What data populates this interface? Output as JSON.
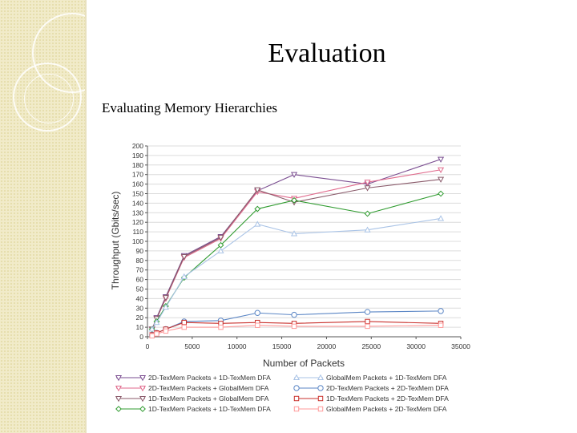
{
  "slide": {
    "title": "Evaluation",
    "subtitle": "Evaluating Memory Hierarchies"
  },
  "chart_data": {
    "type": "line",
    "title": "",
    "xlabel": "Number of Packets",
    "ylabel": "Throughput (Gbits/sec)",
    "xlim": [
      0,
      35000
    ],
    "ylim": [
      0,
      200
    ],
    "xticks": [
      0,
      5000,
      10000,
      15000,
      20000,
      25000,
      30000,
      35000
    ],
    "yticks": [
      0,
      10,
      20,
      30,
      40,
      50,
      60,
      70,
      80,
      90,
      100,
      110,
      120,
      130,
      140,
      150,
      160,
      170,
      180,
      190,
      200
    ],
    "grid": "horizontal",
    "legend_position": "bottom",
    "series": [
      {
        "name": "2D-TexMem Packets + 1D-TexMem DFA",
        "color": "#7a4d90",
        "marker": "triangle-down",
        "x": [
          512,
          1024,
          2048,
          4096,
          8192,
          12288,
          16384,
          24576,
          32768
        ],
        "y": [
          8,
          20,
          42,
          85,
          105,
          153,
          170,
          160,
          186
        ]
      },
      {
        "name": "2D-TexMem Packets + GlobalMem DFA",
        "color": "#e06a8c",
        "marker": "triangle-down",
        "x": [
          512,
          1024,
          2048,
          4096,
          8192,
          12288,
          16384,
          24576,
          32768
        ],
        "y": [
          8,
          19,
          40,
          83,
          103,
          152,
          145,
          162,
          175
        ]
      },
      {
        "name": "1D-TexMem Packets + GlobalMem DFA",
        "color": "#8a5a6a",
        "marker": "triangle-down",
        "x": [
          512,
          1024,
          2048,
          4096,
          8192,
          12288,
          16384,
          24576,
          32768
        ],
        "y": [
          8,
          19,
          41,
          84,
          104,
          154,
          141,
          156,
          165
        ]
      },
      {
        "name": "1D-TexMem Packets + 1D-TexMem DFA",
        "color": "#2f9b2f",
        "marker": "diamond",
        "x": [
          512,
          1024,
          2048,
          4096,
          8192,
          12288,
          16384,
          24576,
          32768
        ],
        "y": [
          8,
          16,
          32,
          62,
          96,
          134,
          143,
          129,
          150
        ]
      },
      {
        "name": "GlobalMem Packets + 1D-TexMem DFA",
        "color": "#a9c3e6",
        "marker": "triangle-up",
        "x": [
          512,
          1024,
          2048,
          4096,
          8192,
          12288,
          16384,
          24576,
          32768
        ],
        "y": [
          8,
          15,
          31,
          63,
          90,
          118,
          108,
          112,
          124
        ]
      },
      {
        "name": "2D-TexMem Packets + 2D-TexMem DFA",
        "color": "#5b86c5",
        "marker": "circle",
        "x": [
          512,
          1024,
          2048,
          4096,
          8192,
          12288,
          16384,
          24576,
          32768
        ],
        "y": [
          2,
          4,
          8,
          16,
          17,
          25,
          23,
          26,
          27
        ]
      },
      {
        "name": "1D-TexMem Packets + 2D-TexMem DFA",
        "color": "#c9302c",
        "marker": "square",
        "x": [
          512,
          1024,
          2048,
          4096,
          8192,
          12288,
          16384,
          24576,
          32768
        ],
        "y": [
          2,
          4,
          8,
          15,
          14,
          15,
          14,
          16,
          14
        ]
      },
      {
        "name": "GlobalMem Packets + 2D-TexMem DFA",
        "color": "#ff9a9a",
        "marker": "square",
        "x": [
          512,
          1024,
          2048,
          4096,
          8192,
          12288,
          16384,
          24576,
          32768
        ],
        "y": [
          1,
          3,
          6,
          10,
          10,
          12,
          11,
          11,
          12
        ]
      }
    ]
  }
}
